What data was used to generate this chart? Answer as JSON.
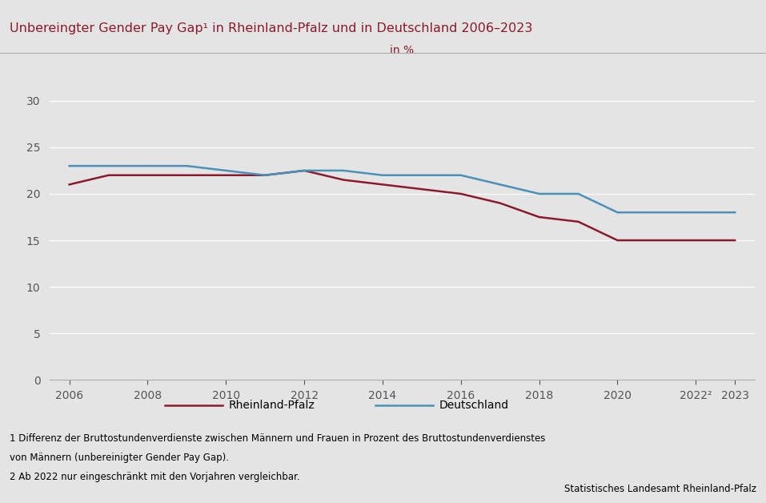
{
  "title": "Unbereingter Gender Pay Gap¹ in Rheinland-Pfalz und in Deutschland 2006–2023",
  "title_color": "#8B1A2D",
  "ylabel_text": "in %",
  "ylabel_color": "#8B1A2D",
  "background_color": "#E4E4E4",
  "plot_background_color": "#E4E4E4",
  "years_rlp": [
    2006,
    2007,
    2008,
    2009,
    2010,
    2011,
    2012,
    2013,
    2014,
    2015,
    2016,
    2017,
    2018,
    2019,
    2020,
    2021,
    2022,
    2023
  ],
  "values_rlp": [
    21.0,
    22.0,
    22.0,
    22.0,
    22.0,
    22.0,
    22.5,
    21.5,
    21.0,
    20.5,
    20.0,
    19.0,
    17.5,
    17.0,
    15.0,
    15.0,
    15.0,
    15.0
  ],
  "years_de": [
    2006,
    2007,
    2008,
    2009,
    2010,
    2011,
    2012,
    2013,
    2014,
    2015,
    2016,
    2017,
    2018,
    2019,
    2020,
    2021,
    2022,
    2023
  ],
  "values_de": [
    23.0,
    23.0,
    23.0,
    23.0,
    22.5,
    22.0,
    22.5,
    22.5,
    22.0,
    22.0,
    22.0,
    21.0,
    20.0,
    20.0,
    18.0,
    18.0,
    18.0,
    18.0
  ],
  "color_rlp": "#8B1A2D",
  "color_de": "#4A90B8",
  "label_rlp": "Rheinland-Pfalz",
  "label_de": "Deutschland",
  "yticks": [
    0,
    5,
    10,
    15,
    20,
    25,
    30
  ],
  "xtick_labels": [
    "2006",
    "2008",
    "2010",
    "2012",
    "2014",
    "2016",
    "2018",
    "2020",
    "2022²",
    "2023"
  ],
  "xtick_positions": [
    2006,
    2008,
    2010,
    2012,
    2014,
    2016,
    2018,
    2020,
    2022,
    2023
  ],
  "ylim": [
    0,
    33
  ],
  "xlim": [
    2005.5,
    2023.5
  ],
  "footnote1": "1 Differenz der Bruttostundenverdienste zwischen Männern und Frauen in Prozent des Bruttostundenverdienstes",
  "footnote2": "von Männern (unbereinigter Gender Pay Gap).",
  "footnote3": "2 Ab 2022 nur eingeschränkt mit den Vorjahren vergleichbar.",
  "source": "Statistisches Landesamt Rheinland-Pfalz",
  "line_width": 1.8,
  "top_bar_color": "#7B1530",
  "separator_color": "#AAAAAA",
  "grid_color": "#FFFFFF",
  "tick_color": "#555555"
}
